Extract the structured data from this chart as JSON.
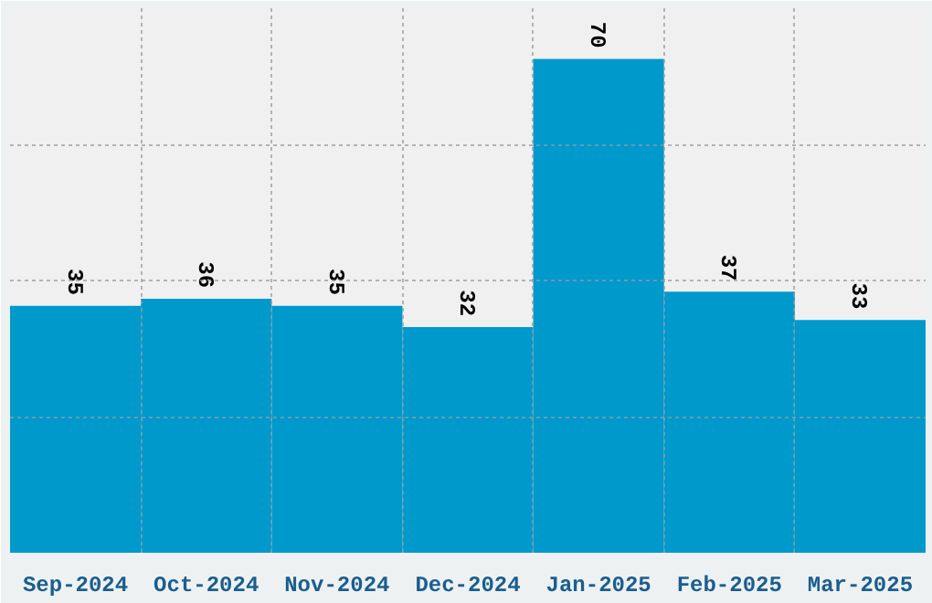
{
  "chart_data": {
    "type": "bar",
    "categories": [
      "Sep-2024",
      "Oct-2024",
      "Nov-2024",
      "Dec-2024",
      "Jan-2025",
      "Feb-2025",
      "Mar-2025"
    ],
    "values": [
      35,
      36,
      35,
      32,
      70,
      37,
      33
    ],
    "color": "#0099cc",
    "ylim": [
      0,
      77.2
    ],
    "yticks": [
      {
        "value": 19.3,
        "label": null
      },
      {
        "value": 38.6,
        "label": null
      },
      {
        "value": 57.9,
        "label": null
      }
    ],
    "tick_labels": "x",
    "grid": true,
    "data_labels": true
  }
}
